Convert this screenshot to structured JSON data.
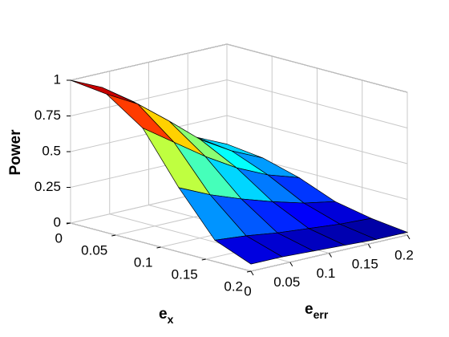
{
  "chart_data": {
    "type": "surface",
    "x_label": {
      "text": "e",
      "subscript": "x"
    },
    "y_label": {
      "text": "e",
      "subscript": "err"
    },
    "z_label": "Power",
    "x": [
      0,
      0.04,
      0.08,
      0.12,
      0.16,
      0.2
    ],
    "y": [
      0,
      0.04,
      0.08,
      0.12,
      0.16,
      0.2
    ],
    "z": [
      [
        1,
        0.9,
        0.75,
        0.55,
        0.4,
        0.3
      ],
      [
        0.97,
        0.85,
        0.68,
        0.5,
        0.37,
        0.27
      ],
      [
        0.8,
        0.65,
        0.5,
        0.37,
        0.27,
        0.2
      ],
      [
        0.45,
        0.35,
        0.27,
        0.2,
        0.14,
        0.1
      ],
      [
        0.15,
        0.13,
        0.1,
        0.08,
        0.06,
        0.05
      ],
      [
        0.05,
        0.05,
        0.04,
        0.03,
        0.02,
        0.02
      ]
    ],
    "xlim": [
      0,
      0.2
    ],
    "xticks": [
      0,
      0.05,
      0.1,
      0.15,
      0.2
    ],
    "ylim": [
      0,
      0.2
    ],
    "yticks": [
      0,
      0.05,
      0.1,
      0.15,
      0.2
    ],
    "zlim": [
      0,
      1
    ],
    "zticks": [
      0,
      0.25,
      0.5,
      0.75,
      1
    ],
    "colormap": "jet",
    "grid": true
  }
}
